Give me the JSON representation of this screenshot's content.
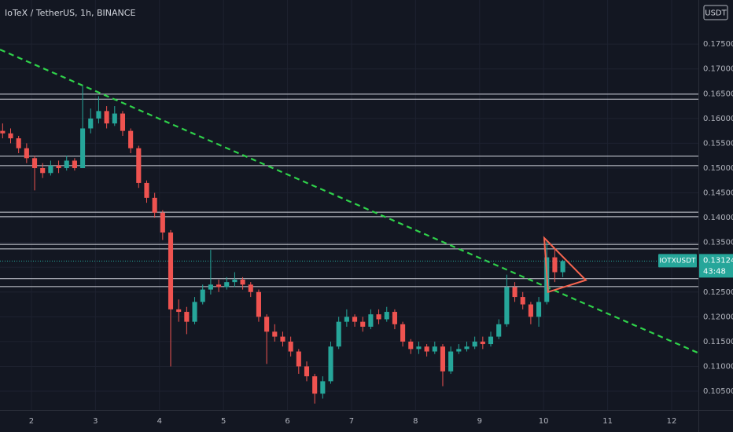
{
  "chart_data": {
    "type": "candlestick",
    "title": "IoTeX / TetherUS, 1h, BINANCE",
    "symbol": "IOTXUSDT",
    "currency": "USDT",
    "last_price": 0.13124,
    "countdown": "43:48",
    "up_color": "#26a69a",
    "down_color": "#ef5350",
    "level_color": "#d1d4dc",
    "trend_color": "#2fd14a",
    "pattern_color": "#f7654f",
    "x": [
      1.55,
      1.675,
      1.8,
      1.925,
      2.05,
      2.175,
      2.3,
      2.425,
      2.55,
      2.675,
      2.8,
      2.925,
      3.05,
      3.175,
      3.3,
      3.425,
      3.55,
      3.675,
      3.8,
      3.925,
      4.05,
      4.175,
      4.3,
      4.425,
      4.55,
      4.675,
      4.8,
      4.925,
      5.05,
      5.175,
      5.3,
      5.425,
      5.55,
      5.675,
      5.8,
      5.925,
      6.05,
      6.175,
      6.3,
      6.425,
      6.55,
      6.675,
      6.8,
      6.925,
      7.05,
      7.175,
      7.3,
      7.425,
      7.55,
      7.675,
      7.8,
      7.925,
      8.05,
      8.175,
      8.3,
      8.425,
      8.55,
      8.675,
      8.8,
      8.925,
      9.05,
      9.175,
      9.3,
      9.425,
      9.55,
      9.675,
      9.8,
      9.925,
      10.05,
      10.175,
      10.3
    ],
    "open": [
      0.1575,
      0.157,
      0.156,
      0.154,
      0.152,
      0.15,
      0.149,
      0.1505,
      0.15,
      0.1515,
      0.15,
      0.158,
      0.16,
      0.1615,
      0.159,
      0.161,
      0.1575,
      0.154,
      0.147,
      0.144,
      0.141,
      0.137,
      0.1215,
      0.121,
      0.119,
      0.123,
      0.1255,
      0.1265,
      0.126,
      0.127,
      0.1275,
      0.1265,
      0.125,
      0.12,
      0.117,
      0.116,
      0.115,
      0.113,
      0.11,
      0.108,
      0.1045,
      0.107,
      0.114,
      0.119,
      0.12,
      0.119,
      0.118,
      0.1205,
      0.1195,
      0.121,
      0.1185,
      0.115,
      0.1135,
      0.114,
      0.113,
      0.114,
      0.109,
      0.113,
      0.1135,
      0.114,
      0.115,
      0.1145,
      0.116,
      0.1185,
      0.126,
      0.124,
      0.1225,
      0.12,
      0.123,
      0.132,
      0.129
    ],
    "high": [
      0.159,
      0.158,
      0.1565,
      0.155,
      0.1525,
      0.151,
      0.1515,
      0.1515,
      0.1525,
      0.152,
      0.1665,
      0.162,
      0.1645,
      0.1625,
      0.1625,
      0.1615,
      0.158,
      0.1545,
      0.1475,
      0.145,
      0.1415,
      0.1375,
      0.1235,
      0.122,
      0.124,
      0.1265,
      0.1335,
      0.1275,
      0.128,
      0.129,
      0.128,
      0.127,
      0.1255,
      0.1205,
      0.1185,
      0.117,
      0.116,
      0.1135,
      0.111,
      0.1085,
      0.108,
      0.115,
      0.12,
      0.1215,
      0.1205,
      0.12,
      0.1215,
      0.1215,
      0.122,
      0.1215,
      0.119,
      0.1155,
      0.115,
      0.1145,
      0.115,
      0.1145,
      0.114,
      0.1145,
      0.115,
      0.116,
      0.116,
      0.117,
      0.1195,
      0.1285,
      0.127,
      0.125,
      0.123,
      0.124,
      0.1355,
      0.1335,
      0.1315
    ],
    "low": [
      0.156,
      0.155,
      0.153,
      0.151,
      0.1455,
      0.148,
      0.1485,
      0.149,
      0.1495,
      0.1495,
      0.15,
      0.157,
      0.159,
      0.158,
      0.1585,
      0.1565,
      0.153,
      0.146,
      0.143,
      0.14,
      0.1355,
      0.11,
      0.119,
      0.1165,
      0.1185,
      0.1225,
      0.1245,
      0.125,
      0.1255,
      0.126,
      0.1255,
      0.124,
      0.119,
      0.1105,
      0.115,
      0.114,
      0.112,
      0.1085,
      0.107,
      0.1025,
      0.1035,
      0.1065,
      0.1135,
      0.118,
      0.118,
      0.117,
      0.1175,
      0.1185,
      0.119,
      0.1175,
      0.114,
      0.1125,
      0.1125,
      0.112,
      0.1125,
      0.106,
      0.1085,
      0.1125,
      0.113,
      0.1135,
      0.1135,
      0.114,
      0.1155,
      0.118,
      0.123,
      0.1215,
      0.1185,
      0.118,
      0.1225,
      0.127,
      0.128
    ],
    "close": [
      0.157,
      0.156,
      0.154,
      0.152,
      0.15,
      0.149,
      0.1505,
      0.15,
      0.1515,
      0.15,
      0.158,
      0.16,
      0.1615,
      0.159,
      0.161,
      0.1575,
      0.154,
      0.147,
      0.144,
      0.141,
      0.137,
      0.1215,
      0.121,
      0.119,
      0.123,
      0.1255,
      0.1265,
      0.126,
      0.127,
      0.1275,
      0.1265,
      0.125,
      0.12,
      0.117,
      0.116,
      0.115,
      0.113,
      0.11,
      0.108,
      0.1045,
      0.107,
      0.114,
      0.119,
      0.12,
      0.119,
      0.118,
      0.1205,
      0.1195,
      0.121,
      0.1185,
      0.115,
      0.1135,
      0.114,
      0.113,
      0.114,
      0.109,
      0.113,
      0.1135,
      0.114,
      0.115,
      0.1145,
      0.116,
      0.1185,
      0.126,
      0.124,
      0.1225,
      0.12,
      0.123,
      0.132,
      0.129,
      0.13124
    ],
    "levels": [
      [
        0.1649,
        0.1639
      ],
      [
        0.1524,
        0.1505
      ],
      [
        0.1411,
        0.1402
      ],
      [
        0.1346,
        0.1337
      ],
      [
        0.1277,
        0.1261
      ]
    ],
    "trendline": {
      "x": [
        1.509,
        12.418
      ],
      "y": [
        0.1739,
        0.1127
      ]
    },
    "triangle": {
      "x": [
        10.01,
        10.66,
        10.07
      ],
      "y": [
        0.1359,
        0.1274,
        0.125
      ]
    },
    "xlim": [
      1.509,
      12.418
    ],
    "ylim": [
      0.1012,
      0.1839
    ],
    "xticks": [
      2,
      3,
      4,
      5,
      6,
      7,
      8,
      9,
      10,
      11,
      12
    ],
    "yticks": [
      {
        "value": 0.105,
        "label": "0.10500"
      },
      {
        "value": 0.11,
        "label": "0.11000"
      },
      {
        "value": 0.115,
        "label": "0.11500"
      },
      {
        "value": 0.12,
        "label": "0.12000"
      },
      {
        "value": 0.125,
        "label": "0.12500"
      },
      {
        "value": 0.13,
        "label": "0.13000"
      },
      {
        "value": 0.135,
        "label": "0.13500"
      },
      {
        "value": 0.14,
        "label": "0.14000"
      },
      {
        "value": 0.145,
        "label": "0.14500"
      },
      {
        "value": 0.15,
        "label": "0.15000"
      },
      {
        "value": 0.155,
        "label": "0.15500"
      },
      {
        "value": 0.16,
        "label": "0.16000"
      },
      {
        "value": 0.165,
        "label": "0.16500"
      },
      {
        "value": 0.17,
        "label": "0.17000"
      },
      {
        "value": 0.175,
        "label": "0.17500"
      }
    ]
  }
}
